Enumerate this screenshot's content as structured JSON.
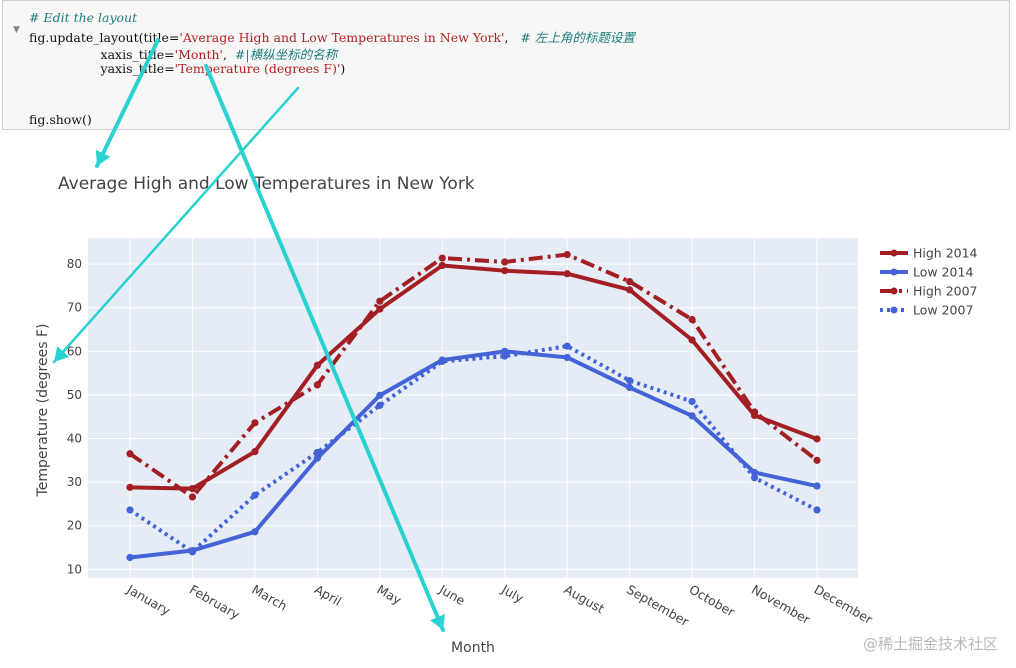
{
  "notebook": {
    "code_lines": [
      {
        "indent": "",
        "parts": [
          {
            "t": "cm",
            "s": "# Edit the layout"
          }
        ]
      },
      {
        "indent": "",
        "parts": [
          {
            "t": "fn",
            "s": "fig.update_layout(title="
          },
          {
            "t": "str",
            "s": "'Average High and Low Temperatures in New York'"
          },
          {
            "t": "fn",
            "s": ",   "
          },
          {
            "t": "cm",
            "s": "# 左上角的标题设置"
          }
        ]
      },
      {
        "indent": "                  ",
        "parts": [
          {
            "t": "fn",
            "s": "xaxis_title="
          },
          {
            "t": "str",
            "s": "'Month'"
          },
          {
            "t": "fn",
            "s": ",  "
          },
          {
            "t": "cm",
            "s": "#|横纵坐标的名称"
          }
        ]
      },
      {
        "indent": "                  ",
        "parts": [
          {
            "t": "fn",
            "s": "yaxis_title="
          },
          {
            "t": "str",
            "s": "'Temperature (degrees F)'"
          },
          {
            "t": "fn",
            "s": ")"
          }
        ]
      },
      {
        "indent": "",
        "parts": [
          {
            "t": "fn",
            "s": ""
          }
        ]
      },
      {
        "indent": "",
        "parts": [
          {
            "t": "fn",
            "s": ""
          }
        ]
      },
      {
        "indent": "",
        "parts": [
          {
            "t": "fn",
            "s": "fig.show()"
          }
        ]
      }
    ]
  },
  "watermark": "@稀土掘金技术社区",
  "colors": {
    "high": "#a31f24",
    "low": "#4463d6",
    "plot_bg": "#e5ecf6",
    "grid": "#ffffff",
    "arrow": "#2ad1d1"
  },
  "chart_data": {
    "type": "line",
    "title": "Average High and Low Temperatures in New York",
    "xlabel": "Month",
    "ylabel": "Temperature (degrees F)",
    "categories": [
      "January",
      "February",
      "March",
      "April",
      "May",
      "June",
      "July",
      "August",
      "September",
      "October",
      "November",
      "December"
    ],
    "ylim": [
      8,
      86
    ],
    "yticks": [
      10,
      20,
      30,
      40,
      50,
      60,
      70,
      80
    ],
    "grid": true,
    "legend_position": "top-right",
    "series": [
      {
        "name": "High 2014",
        "color": "high",
        "dash": "solid",
        "values": [
          28.8,
          28.5,
          37.0,
          56.8,
          69.7,
          79.7,
          78.5,
          77.8,
          74.1,
          62.6,
          45.3,
          39.9
        ]
      },
      {
        "name": "Low 2014",
        "color": "low",
        "dash": "solid",
        "values": [
          12.7,
          14.3,
          18.6,
          35.5,
          49.9,
          58.0,
          60.0,
          58.6,
          51.7,
          45.2,
          32.2,
          29.1
        ]
      },
      {
        "name": "High 2007",
        "color": "high",
        "dash": "dashdot",
        "values": [
          36.5,
          26.6,
          43.6,
          52.3,
          71.5,
          81.4,
          80.5,
          82.2,
          76.0,
          67.3,
          46.1,
          35.0
        ]
      },
      {
        "name": "Low 2007",
        "color": "low",
        "dash": "dot",
        "values": [
          23.6,
          14.0,
          27.0,
          36.8,
          47.6,
          57.7,
          58.9,
          61.2,
          53.3,
          48.5,
          31.0,
          23.6
        ]
      }
    ]
  }
}
